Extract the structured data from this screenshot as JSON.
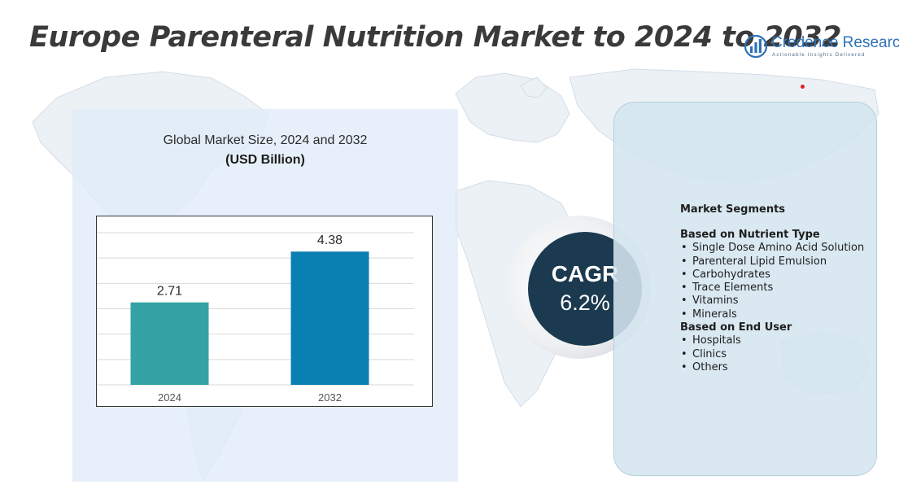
{
  "page": {
    "title": "Europe Parenteral Nutrition Market to 2024 to 2032"
  },
  "logo": {
    "name": "Credence Research",
    "tagline": "Actionable Insights Delivered",
    "icon": "bar-chart-circle-icon"
  },
  "chart_data": {
    "type": "bar",
    "title": "Global Market Size, 2024 and 2032",
    "subtitle": "(USD Billion)",
    "categories": [
      "2024",
      "2032"
    ],
    "values": [
      2.71,
      4.38
    ],
    "data_labels": [
      "2.71",
      "4.38"
    ],
    "colors": [
      "#35a3a3",
      "#0a7fb2"
    ],
    "ylim": [
      0,
      5
    ],
    "grid": true,
    "legend": "none"
  },
  "cagr": {
    "label": "CAGR",
    "value": "6.2%"
  },
  "segments": {
    "heading": "Market Segments",
    "groups": [
      {
        "title": "Based on Nutrient Type",
        "items": [
          "Single Dose Amino Acid Solution",
          "Parenteral Lipid Emulsion",
          "Carbohydrates",
          "Trace Elements",
          "Vitamins",
          "Minerals"
        ]
      },
      {
        "title": "Based on End User",
        "items": [
          "Hospitals",
          "Clinics",
          "Others"
        ]
      }
    ]
  },
  "colors": {
    "title_text": "#3a3a3a",
    "cagr_circle": "#1b3a4f",
    "left_panel": "#e0ecf8",
    "right_panel": "#d4e5ef",
    "logo_blue": "#2e72b8"
  }
}
